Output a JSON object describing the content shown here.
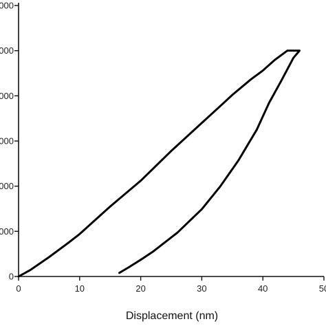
{
  "chart_data": {
    "type": "line",
    "title": "",
    "xlabel": "Displacement (nm)",
    "ylabel": "",
    "xlim": [
      0,
      50
    ],
    "ylim": [
      0,
      0.6
    ],
    "x_ticks": [
      {
        "value": 0,
        "label": "0"
      },
      {
        "value": 10,
        "label": "10"
      },
      {
        "value": 20,
        "label": "20"
      },
      {
        "value": 30,
        "label": "30"
      },
      {
        "value": 40,
        "label": "40"
      },
      {
        "value": 50,
        "label": "50"
      }
    ],
    "y_ticks": [
      {
        "value": 0,
        "label": "0"
      },
      {
        "value": 0.1,
        "label": "000"
      },
      {
        "value": 0.2,
        "label": "000"
      },
      {
        "value": 0.3,
        "label": "000"
      },
      {
        "value": 0.4,
        "label": "000"
      },
      {
        "value": 0.5,
        "label": "000"
      },
      {
        "value": 0.6,
        "label": "000"
      }
    ],
    "grid": false,
    "series": [
      {
        "x": [
          0,
          2,
          5,
          8,
          10,
          15,
          20,
          25,
          30,
          33,
          35,
          38,
          40,
          42,
          44,
          46,
          45,
          43,
          41,
          39,
          36,
          33,
          30,
          26,
          22,
          20,
          18,
          16.5
        ],
        "y": [
          0,
          0.015,
          0.043,
          0.073,
          0.094,
          0.155,
          0.212,
          0.278,
          0.34,
          0.377,
          0.402,
          0.436,
          0.456,
          0.48,
          0.5,
          0.5,
          0.484,
          0.433,
          0.384,
          0.325,
          0.257,
          0.199,
          0.149,
          0.097,
          0.055,
          0.037,
          0.02,
          0.008
        ]
      }
    ]
  }
}
